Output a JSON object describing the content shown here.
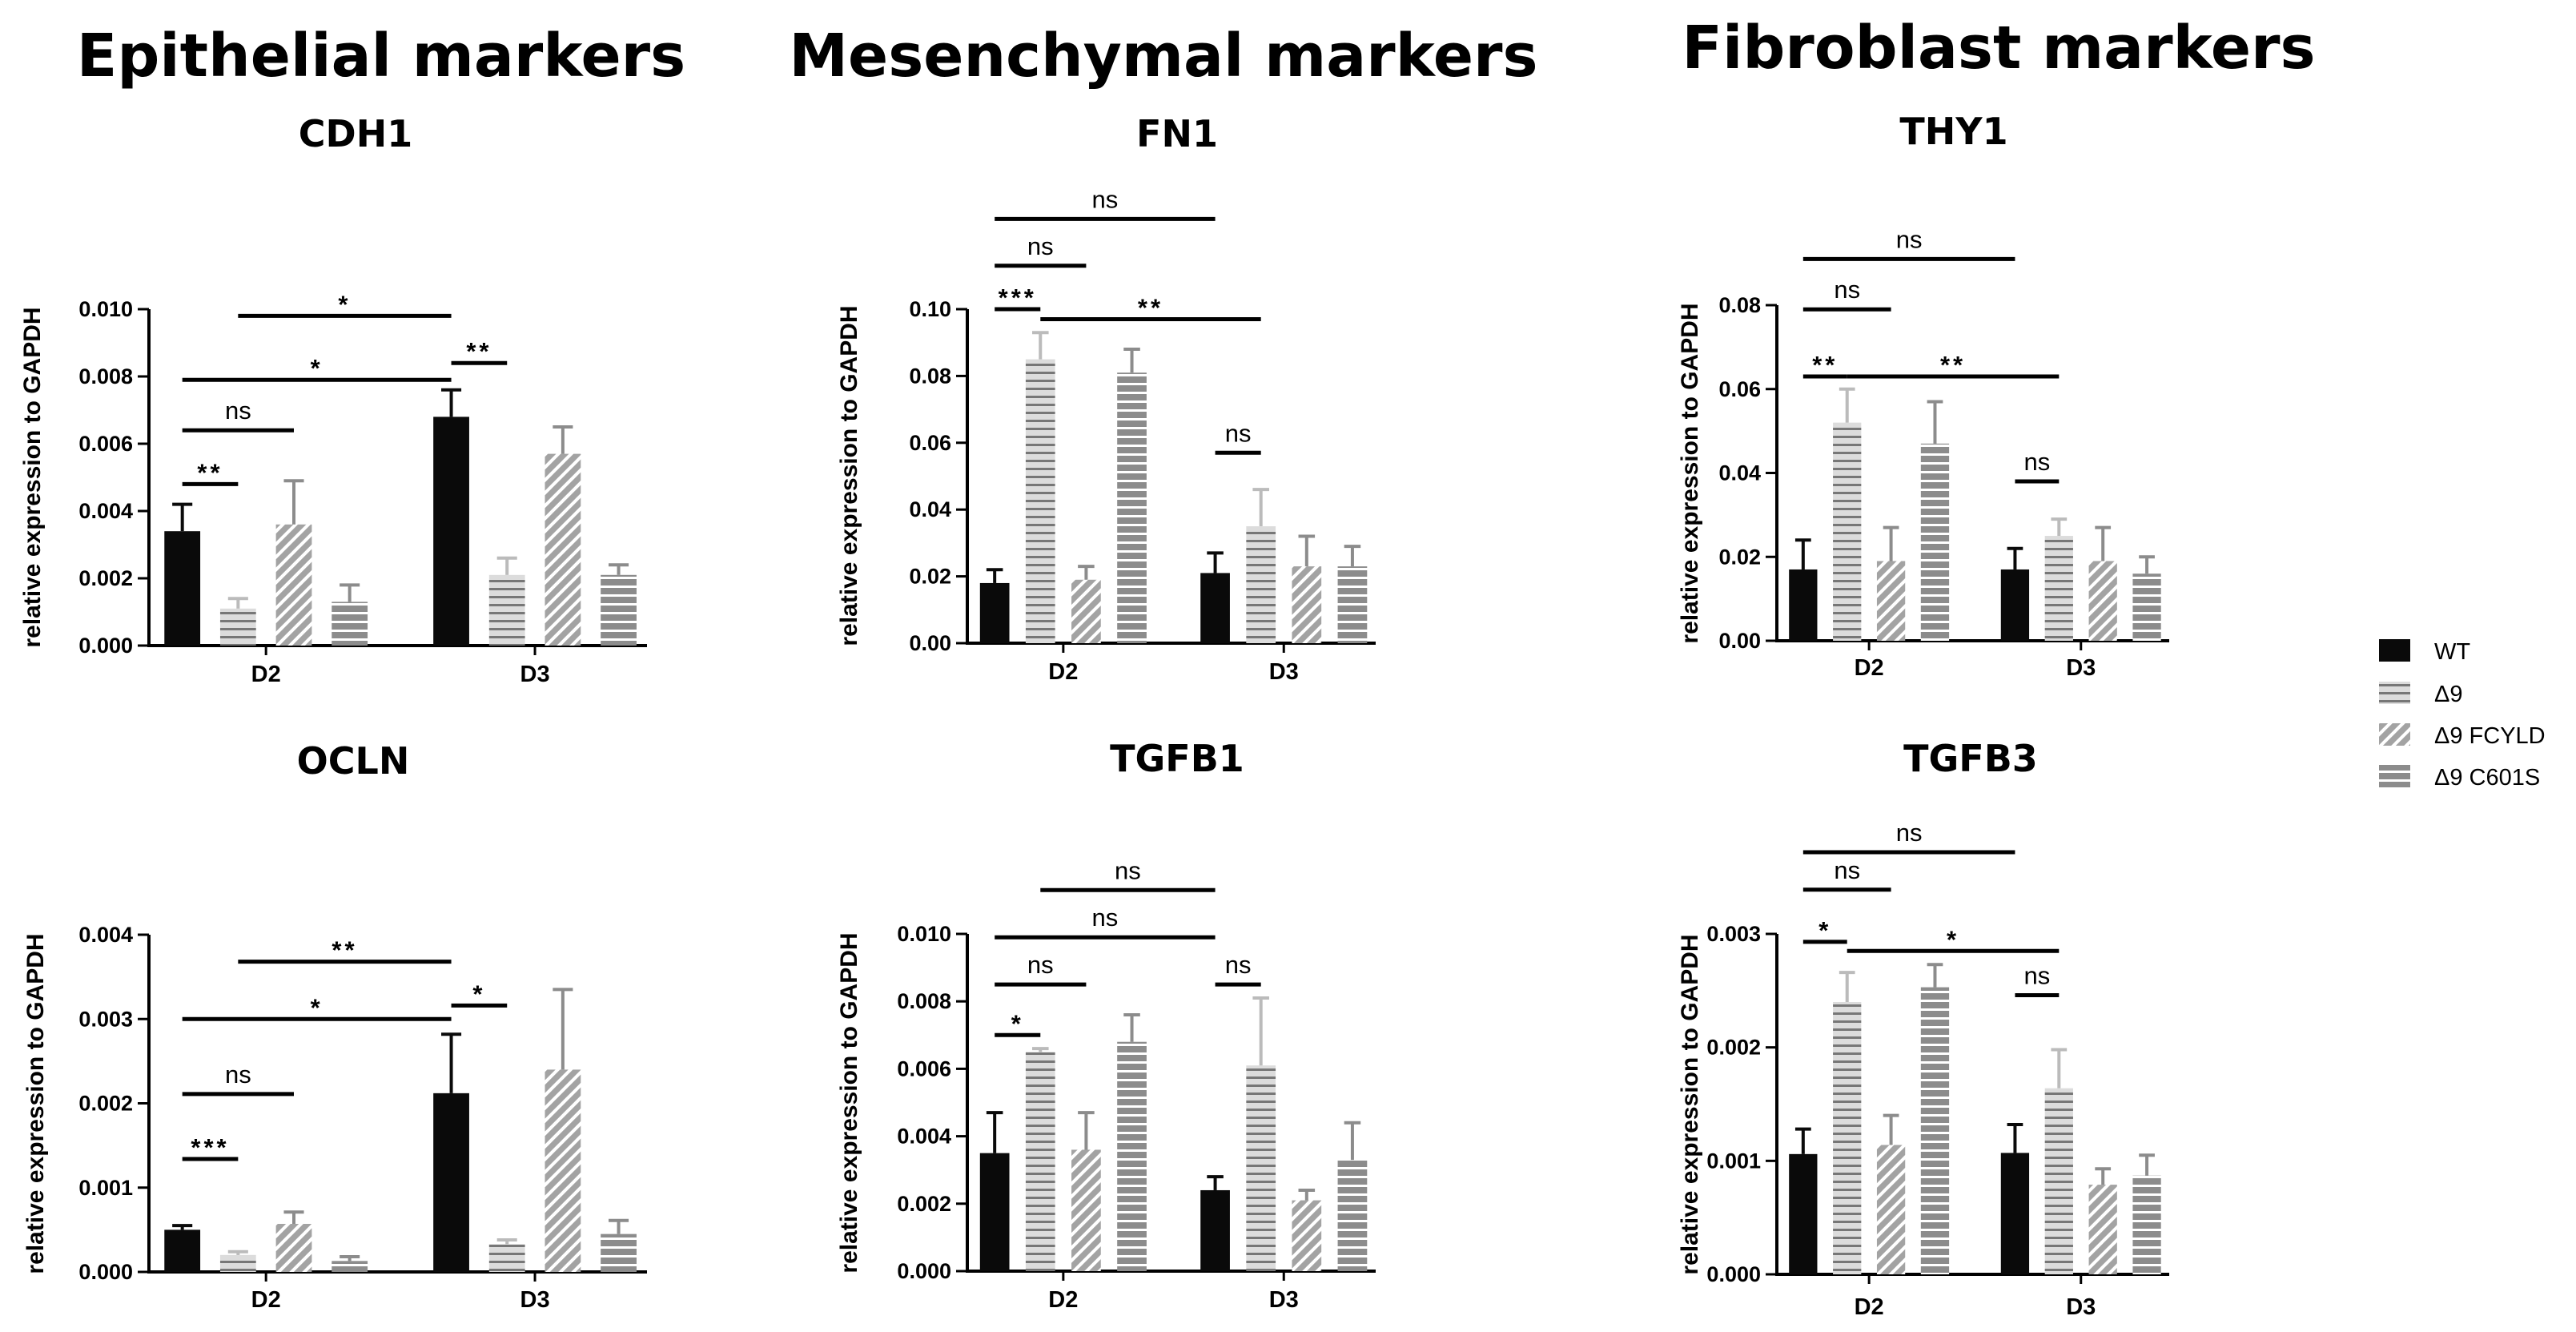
{
  "legend": [
    {
      "name": "WT",
      "fill": "#0a0a0a",
      "pattern": "solid"
    },
    {
      "name": "Δ9",
      "fill": "#dcdcdc",
      "pattern": "hstripe-dark"
    },
    {
      "name": "Δ9 FCYLD",
      "fill": "#a3a3a3",
      "pattern": "diag-white"
    },
    {
      "name": "Δ9 C601S",
      "fill": "#8c8c8c",
      "pattern": "hstripe-white"
    }
  ],
  "colors": {
    "WT": "#0a0a0a",
    "D9": "#dcdcdc",
    "D9_FCYLD": "#a3a3a3",
    "D9_C601S": "#8c8c8c",
    "axis": "#000000"
  },
  "column_headings": [
    "Epithelial markers",
    "Mesenchymal markers",
    "Fibroblast markers"
  ],
  "chart_data": [
    {
      "type": "bar",
      "title": "CDH1",
      "ylabel": "relative expression to GAPDH",
      "categories": [
        "D2",
        "D3"
      ],
      "ylim": [
        0,
        0.01
      ],
      "yticks": [
        "0.000",
        "0.002",
        "0.004",
        "0.006",
        "0.008",
        "0.010"
      ],
      "series": [
        {
          "name": "WT",
          "values": [
            0.0034,
            0.0068
          ],
          "errors": [
            0.0008,
            0.0008
          ]
        },
        {
          "name": "Δ9",
          "values": [
            0.0011,
            0.0021
          ],
          "errors": [
            0.0003,
            0.0005
          ]
        },
        {
          "name": "Δ9 FCYLD",
          "values": [
            0.0036,
            0.0057
          ],
          "errors": [
            0.0013,
            0.0008
          ]
        },
        {
          "name": "Δ9 C601S",
          "values": [
            0.0013,
            0.0021
          ],
          "errors": [
            0.0005,
            0.0003
          ]
        }
      ],
      "significance": [
        {
          "label": "*",
          "from": [
            0,
            1
          ],
          "to": [
            1,
            0
          ],
          "level": 0.0098
        },
        {
          "label": "*",
          "from": [
            0,
            0
          ],
          "to": [
            1,
            0
          ],
          "level": 0.0079
        },
        {
          "label": "**",
          "from": [
            1,
            0
          ],
          "to": [
            1,
            1
          ],
          "level": 0.0084
        },
        {
          "label": "ns",
          "from": [
            0,
            0
          ],
          "to": [
            0,
            2
          ],
          "level": 0.0064
        },
        {
          "label": "**",
          "from": [
            0,
            0
          ],
          "to": [
            0,
            1
          ],
          "level": 0.0048
        }
      ]
    },
    {
      "type": "bar",
      "title": "FN1",
      "ylabel": "relative expression to GAPDH",
      "categories": [
        "D2",
        "D3"
      ],
      "ylim": [
        0,
        0.1
      ],
      "yticks": [
        "0.00",
        "0.02",
        "0.04",
        "0.06",
        "0.08",
        "0.10"
      ],
      "series": [
        {
          "name": "WT",
          "values": [
            0.018,
            0.021
          ],
          "errors": [
            0.004,
            0.006
          ]
        },
        {
          "name": "Δ9",
          "values": [
            0.085,
            0.035
          ],
          "errors": [
            0.008,
            0.011
          ]
        },
        {
          "name": "Δ9 FCYLD",
          "values": [
            0.019,
            0.023
          ],
          "errors": [
            0.004,
            0.009
          ]
        },
        {
          "name": "Δ9 C601S",
          "values": [
            0.081,
            0.023
          ],
          "errors": [
            0.007,
            0.006
          ]
        }
      ],
      "significance": [
        {
          "label": "ns",
          "from": [
            0,
            0
          ],
          "to": [
            1,
            0
          ],
          "level": 0.127
        },
        {
          "label": "ns",
          "from": [
            0,
            0
          ],
          "to": [
            0,
            2
          ],
          "level": 0.113
        },
        {
          "label": "***",
          "from": [
            0,
            0
          ],
          "to": [
            0,
            1
          ],
          "level": 0.1
        },
        {
          "label": "**",
          "from": [
            0,
            1
          ],
          "to": [
            1,
            1
          ],
          "level": 0.097
        },
        {
          "label": "ns",
          "from": [
            1,
            0
          ],
          "to": [
            1,
            1
          ],
          "level": 0.057
        }
      ]
    },
    {
      "type": "bar",
      "title": "THY1",
      "ylabel": "relative expression to GAPDH",
      "categories": [
        "D2",
        "D3"
      ],
      "ylim": [
        0,
        0.08
      ],
      "yticks": [
        "0.00",
        "0.02",
        "0.04",
        "0.06",
        "0.08"
      ],
      "series": [
        {
          "name": "WT",
          "values": [
            0.017,
            0.017
          ],
          "errors": [
            0.007,
            0.005
          ]
        },
        {
          "name": "Δ9",
          "values": [
            0.052,
            0.025
          ],
          "errors": [
            0.008,
            0.004
          ]
        },
        {
          "name": "Δ9 FCYLD",
          "values": [
            0.019,
            0.019
          ],
          "errors": [
            0.008,
            0.008
          ]
        },
        {
          "name": "Δ9 C601S",
          "values": [
            0.047,
            0.016
          ],
          "errors": [
            0.01,
            0.004
          ]
        }
      ],
      "significance": [
        {
          "label": "ns",
          "from": [
            0,
            0
          ],
          "to": [
            1,
            0
          ],
          "level": 0.091
        },
        {
          "label": "ns",
          "from": [
            0,
            0
          ],
          "to": [
            0,
            2
          ],
          "level": 0.079
        },
        {
          "label": "**",
          "from": [
            0,
            0
          ],
          "to": [
            0,
            1
          ],
          "level": 0.063
        },
        {
          "label": "**",
          "from": [
            0,
            1
          ],
          "to": [
            1,
            1
          ],
          "level": 0.063
        },
        {
          "label": "ns",
          "from": [
            1,
            0
          ],
          "to": [
            1,
            1
          ],
          "level": 0.038
        }
      ]
    },
    {
      "type": "bar",
      "title": "OCLN",
      "ylabel": "relative expression to GAPDH",
      "categories": [
        "D2",
        "D3"
      ],
      "ylim": [
        0,
        0.004
      ],
      "yticks": [
        "0.000",
        "0.001",
        "0.002",
        "0.003",
        "0.004"
      ],
      "series": [
        {
          "name": "WT",
          "values": [
            0.0005,
            0.00212
          ],
          "errors": [
            5e-05,
            0.0007
          ]
        },
        {
          "name": "Δ9",
          "values": [
            0.0002,
            0.00033
          ],
          "errors": [
            4e-05,
            5e-05
          ]
        },
        {
          "name": "Δ9 FCYLD",
          "values": [
            0.00057,
            0.0024
          ],
          "errors": [
            0.00014,
            0.00095
          ]
        },
        {
          "name": "Δ9 C601S",
          "values": [
            0.00013,
            0.00045
          ],
          "errors": [
            5e-05,
            0.00016
          ]
        }
      ],
      "significance": [
        {
          "label": "**",
          "from": [
            0,
            1
          ],
          "to": [
            1,
            0
          ],
          "level": 0.00368
        },
        {
          "label": "*",
          "from": [
            0,
            0
          ],
          "to": [
            1,
            0
          ],
          "level": 0.003
        },
        {
          "label": "*",
          "from": [
            1,
            0
          ],
          "to": [
            1,
            1
          ],
          "level": 0.00316
        },
        {
          "label": "ns",
          "from": [
            0,
            0
          ],
          "to": [
            0,
            2
          ],
          "level": 0.00211
        },
        {
          "label": "***",
          "from": [
            0,
            0
          ],
          "to": [
            0,
            1
          ],
          "level": 0.00134
        }
      ]
    },
    {
      "type": "bar",
      "title": "TGFB1",
      "ylabel": "relative expression to GAPDH",
      "categories": [
        "D2",
        "D3"
      ],
      "ylim": [
        0,
        0.01
      ],
      "yticks": [
        "0.000",
        "0.002",
        "0.004",
        "0.006",
        "0.008",
        "0.010"
      ],
      "series": [
        {
          "name": "WT",
          "values": [
            0.0035,
            0.0024
          ],
          "errors": [
            0.0012,
            0.0004
          ]
        },
        {
          "name": "Δ9",
          "values": [
            0.0065,
            0.0061
          ],
          "errors": [
            0.0001,
            0.002
          ]
        },
        {
          "name": "Δ9 FCYLD",
          "values": [
            0.0036,
            0.0021
          ],
          "errors": [
            0.0011,
            0.0003
          ]
        },
        {
          "name": "Δ9 C601S",
          "values": [
            0.0068,
            0.0033
          ],
          "errors": [
            0.0008,
            0.0011
          ]
        }
      ],
      "significance": [
        {
          "label": "ns",
          "from": [
            0,
            1
          ],
          "to": [
            1,
            0
          ],
          "level": 0.0113
        },
        {
          "label": "ns",
          "from": [
            0,
            0
          ],
          "to": [
            1,
            0
          ],
          "level": 0.0099
        },
        {
          "label": "ns",
          "from": [
            0,
            0
          ],
          "to": [
            0,
            2
          ],
          "level": 0.0085
        },
        {
          "label": "ns",
          "from": [
            1,
            0
          ],
          "to": [
            1,
            1
          ],
          "level": 0.0085
        },
        {
          "label": "*",
          "from": [
            0,
            0
          ],
          "to": [
            0,
            1
          ],
          "level": 0.007
        }
      ]
    },
    {
      "type": "bar",
      "title": "TGFB3",
      "ylabel": "relative expression to GAPDH",
      "categories": [
        "D2",
        "D3"
      ],
      "ylim": [
        0,
        0.003
      ],
      "yticks": [
        "0.000",
        "0.001",
        "0.002",
        "0.003"
      ],
      "series": [
        {
          "name": "WT",
          "values": [
            0.00106,
            0.00107
          ],
          "errors": [
            0.00022,
            0.00025
          ]
        },
        {
          "name": "Δ9",
          "values": [
            0.0024,
            0.00164
          ],
          "errors": [
            0.00026,
            0.00034
          ]
        },
        {
          "name": "Δ9 FCYLD",
          "values": [
            0.00114,
            0.00079
          ],
          "errors": [
            0.00026,
            0.00014
          ]
        },
        {
          "name": "Δ9 C601S",
          "values": [
            0.00253,
            0.00087
          ],
          "errors": [
            0.0002,
            0.00018
          ]
        }
      ],
      "significance": [
        {
          "label": "ns",
          "from": [
            0,
            0
          ],
          "to": [
            1,
            0
          ],
          "level": 0.00372
        },
        {
          "label": "ns",
          "from": [
            0,
            0
          ],
          "to": [
            0,
            2
          ],
          "level": 0.00339
        },
        {
          "label": "*",
          "from": [
            0,
            0
          ],
          "to": [
            0,
            1
          ],
          "level": 0.00293
        },
        {
          "label": "*",
          "from": [
            0,
            1
          ],
          "to": [
            1,
            1
          ],
          "level": 0.00285
        },
        {
          "label": "ns",
          "from": [
            1,
            0
          ],
          "to": [
            1,
            1
          ],
          "level": 0.00246
        }
      ]
    }
  ]
}
